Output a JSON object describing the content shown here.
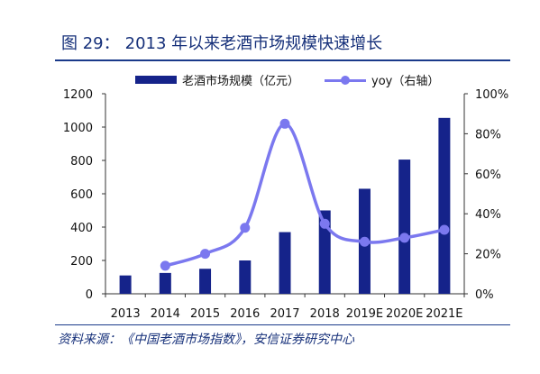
{
  "figure": {
    "label": "图 29：",
    "title": "2013 年以来老酒市场规模快速增长",
    "source": "资料来源：《中国老酒市场指数》，安信证券研究中心"
  },
  "colors": {
    "bar": "#15238a",
    "line": "#7b78ef",
    "title": "#16307a"
  },
  "chart_data": {
    "type": "bar",
    "categories": [
      "2013",
      "2014",
      "2015",
      "2016",
      "2017",
      "2018",
      "2019E",
      "2020E",
      "2021E"
    ],
    "series": [
      {
        "name": "老酒市场规模（亿元）",
        "type": "bar",
        "axis": "left",
        "values": [
          110,
          125,
          150,
          200,
          370,
          500,
          630,
          805,
          1055
        ]
      },
      {
        "name": "yoy（右轴）",
        "type": "line",
        "axis": "right",
        "smooth": true,
        "values": [
          null,
          0.14,
          0.2,
          0.33,
          0.85,
          0.35,
          0.26,
          0.28,
          0.32
        ]
      }
    ],
    "y_left": {
      "min": 0,
      "max": 1200,
      "ticks": [
        0,
        200,
        400,
        600,
        800,
        1000,
        1200
      ],
      "tick_labels": [
        "0",
        "200",
        "400",
        "600",
        "800",
        "1000",
        "1200"
      ]
    },
    "y_right": {
      "min": 0,
      "max": 1.0,
      "ticks": [
        0,
        0.2,
        0.4,
        0.6,
        0.8,
        1.0
      ],
      "tick_labels": [
        "0%",
        "20%",
        "40%",
        "60%",
        "80%",
        "100%"
      ]
    },
    "grid": false,
    "legend_position": "top"
  }
}
